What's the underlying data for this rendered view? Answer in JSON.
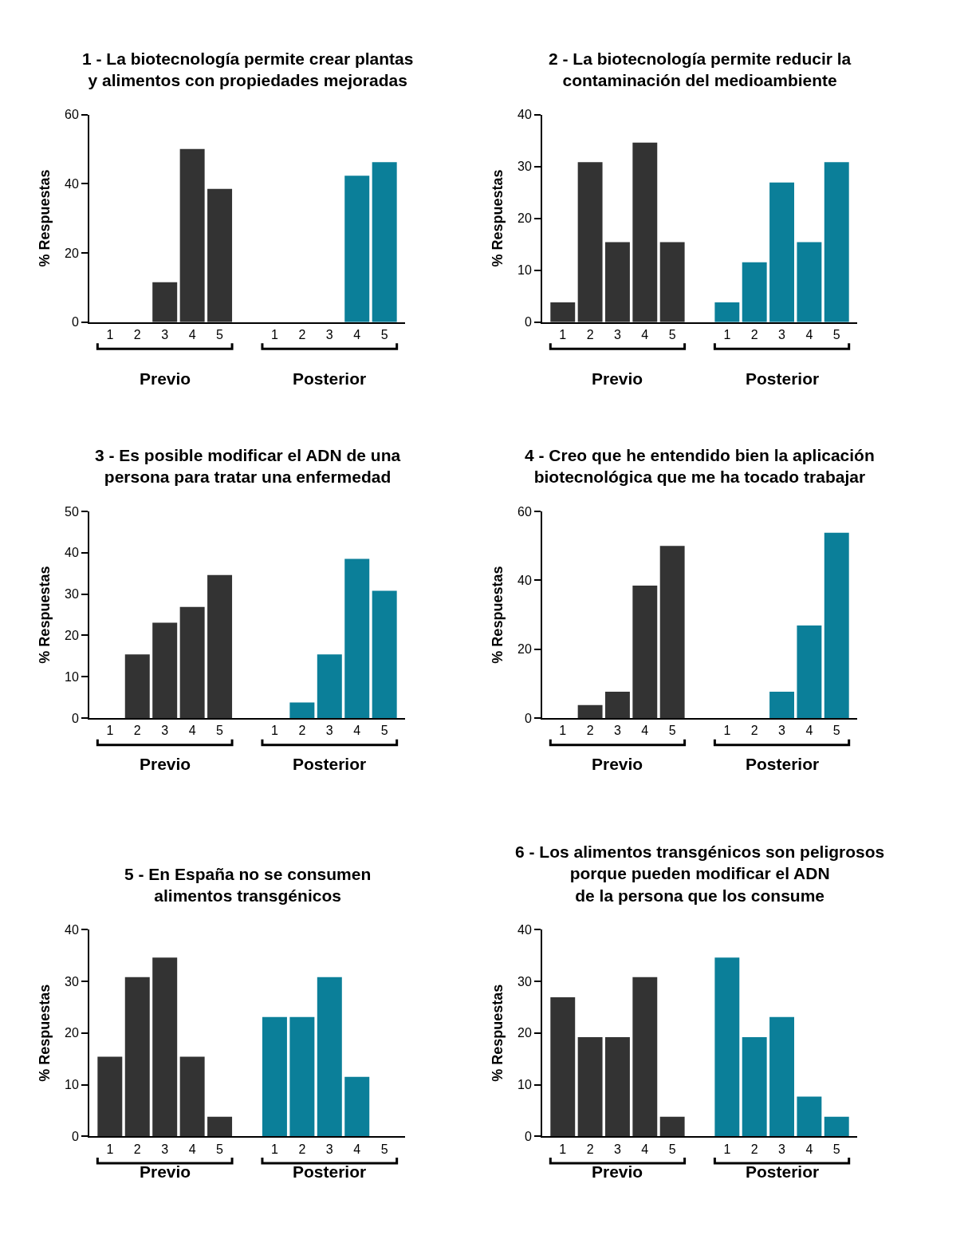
{
  "chart_data": [
    {
      "type": "bar",
      "title": "1 - La biotecnología permite crear plantas\ny alimentos con propiedades mejoradas",
      "ylabel": "% Respuestas",
      "categories": [
        "1",
        "2",
        "3",
        "4",
        "5",
        null,
        "1",
        "2",
        "3",
        "4",
        "5"
      ],
      "ylim": [
        0,
        60
      ],
      "yticks": [
        0,
        20,
        40,
        60
      ],
      "series": [
        {
          "name": "Previo",
          "color": "#333333",
          "values": [
            0,
            0,
            11.5,
            50,
            38.5,
            null,
            null,
            null,
            null,
            null,
            null
          ]
        },
        {
          "name": "Posterior",
          "color": "#0b7f99",
          "values": [
            null,
            null,
            null,
            null,
            null,
            null,
            0,
            0,
            0,
            42.3,
            46.2
          ]
        }
      ]
    },
    {
      "type": "bar",
      "title": "2 - La biotecnología permite reducir la\ncontaminación del medioambiente",
      "ylabel": "% Respuestas",
      "categories": [
        "1",
        "2",
        "3",
        "4",
        "5",
        null,
        "1",
        "2",
        "3",
        "4",
        "5"
      ],
      "ylim": [
        0,
        40
      ],
      "yticks": [
        0,
        10,
        20,
        30,
        40
      ],
      "series": [
        {
          "name": "Previo",
          "color": "#333333",
          "values": [
            3.8,
            30.8,
            15.4,
            34.6,
            15.4,
            null,
            null,
            null,
            null,
            null,
            null
          ]
        },
        {
          "name": "Posterior",
          "color": "#0b7f99",
          "values": [
            null,
            null,
            null,
            null,
            null,
            null,
            3.8,
            11.5,
            26.9,
            15.4,
            30.8
          ]
        }
      ]
    },
    {
      "type": "bar",
      "title": "3 - Es posible modificar el ADN de una\npersona para tratar una enfermedad",
      "ylabel": "% Respuestas",
      "categories": [
        "1",
        "2",
        "3",
        "4",
        "5",
        null,
        "1",
        "2",
        "3",
        "4",
        "5"
      ],
      "ylim": [
        0,
        50
      ],
      "yticks": [
        0,
        10,
        20,
        30,
        40,
        50
      ],
      "series": [
        {
          "name": "Previo",
          "color": "#333333",
          "values": [
            0,
            15.4,
            23.1,
            26.9,
            34.6,
            null,
            null,
            null,
            null,
            null,
            null
          ]
        },
        {
          "name": "Posterior",
          "color": "#0b7f99",
          "values": [
            null,
            null,
            null,
            null,
            null,
            null,
            0,
            3.8,
            15.4,
            38.5,
            30.8
          ]
        }
      ]
    },
    {
      "type": "bar",
      "title": "4 - Creo que he entendido bien la aplicación\nbiotecnológica que me ha tocado trabajar",
      "ylabel": "% Respuestas",
      "categories": [
        "1",
        "2",
        "3",
        "4",
        "5",
        null,
        "1",
        "2",
        "3",
        "4",
        "5"
      ],
      "ylim": [
        0,
        60
      ],
      "yticks": [
        0,
        20,
        40,
        60
      ],
      "series": [
        {
          "name": "Previo",
          "color": "#333333",
          "values": [
            0,
            3.8,
            7.7,
            38.5,
            50,
            null,
            null,
            null,
            null,
            null,
            null
          ]
        },
        {
          "name": "Posterior",
          "color": "#0b7f99",
          "values": [
            null,
            null,
            null,
            null,
            null,
            null,
            0,
            0,
            7.7,
            26.9,
            53.8
          ]
        }
      ]
    },
    {
      "type": "bar",
      "title": "5 - En España no se consumen\nalimentos transgénicos",
      "ylabel": "% Respuestas",
      "categories": [
        "1",
        "2",
        "3",
        "4",
        "5",
        null,
        "1",
        "2",
        "3",
        "4",
        "5"
      ],
      "ylim": [
        0,
        40
      ],
      "yticks": [
        0,
        10,
        20,
        30,
        40
      ],
      "series": [
        {
          "name": "Previo",
          "color": "#333333",
          "values": [
            15.4,
            30.8,
            34.6,
            15.4,
            3.8,
            null,
            null,
            null,
            null,
            null,
            null
          ]
        },
        {
          "name": "Posterior",
          "color": "#0b7f99",
          "values": [
            null,
            null,
            null,
            null,
            null,
            null,
            23.1,
            23.1,
            30.8,
            11.5,
            0
          ]
        }
      ]
    },
    {
      "type": "bar",
      "title": "6 - Los alimentos transgénicos son peligrosos\nporque pueden modificar el ADN\nde la persona que los consume",
      "ylabel": "% Respuestas",
      "categories": [
        "1",
        "2",
        "3",
        "4",
        "5",
        null,
        "1",
        "2",
        "3",
        "4",
        "5"
      ],
      "ylim": [
        0,
        40
      ],
      "yticks": [
        0,
        10,
        20,
        30,
        40
      ],
      "series": [
        {
          "name": "Previo",
          "color": "#333333",
          "values": [
            26.9,
            19.2,
            19.2,
            30.8,
            3.8,
            null,
            null,
            null,
            null,
            null,
            null
          ]
        },
        {
          "name": "Posterior",
          "color": "#0b7f99",
          "values": [
            null,
            null,
            null,
            null,
            null,
            null,
            34.6,
            19.2,
            23.1,
            7.7,
            3.8
          ]
        }
      ]
    }
  ]
}
